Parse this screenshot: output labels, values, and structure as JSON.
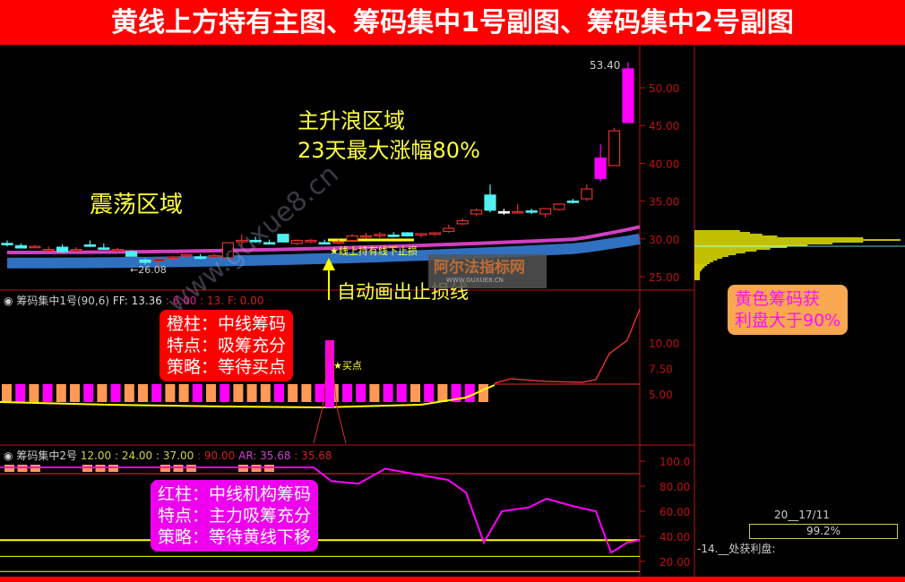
{
  "banner": {
    "title": "黄线上方持有主图、筹码集中1号副图、筹码集中2号副图"
  },
  "colors": {
    "banner": "#ff0000",
    "up": "#e03030",
    "down": "#50f0f0",
    "magenta": "#ff00ff",
    "yellow": "#ffff00",
    "orange": "#ff9955",
    "axis": "#c01010",
    "ma_pink": "#d040c0",
    "ma_blue": "#3070c0"
  },
  "main": {
    "high_label": "53.40",
    "low_label": "←26.08",
    "zone1": "震荡区域",
    "zone2_line1": "主升浪区域",
    "zone2_line2": "23天最大涨幅80%",
    "stoploss_note": "★线上持有线下止损",
    "auto_line_note": "自动画出止损线",
    "watermark": "阿尔法指标网",
    "watermark_small": "WWW.GUXUE8.CN",
    "site_watermark": "www.guxue8.cn",
    "axis": [
      "50.00",
      "45.00",
      "40.00",
      "35.00",
      "30.00",
      "25.00"
    ]
  },
  "panel1": {
    "title": "筹码集中1号(90,6)",
    "ff": "FF: 13.36",
    "v2": ": 6.00",
    "v3": ": 13.",
    "v4": "F: 0.00",
    "buy_point": "★买点",
    "axis": [
      "10.00",
      "7.50",
      "5.00"
    ],
    "note": [
      "橙柱：中线筹码",
      "特点：吸筹充分",
      "策略：等待买点"
    ]
  },
  "panel2": {
    "title": "筹码集中2号",
    "v1": "12.00",
    "v2": ": 24.00",
    "v3": ": 37.00",
    "v4": ": 90.00",
    "ar": "AR: 35.68",
    "v5": ": 35.68",
    "axis": [
      "100.0",
      "80.00",
      "60.00",
      "40.00",
      "20.00"
    ],
    "note": [
      "红柱：中线机构筹码",
      "特点：主力吸筹充分",
      "策略：等待黄线下移"
    ]
  },
  "side": {
    "note": [
      "黄色筹码获",
      "利盘大于90%"
    ],
    "date": "20__17/11",
    "profit_pct": 99.2,
    "profit_text": "99.2%",
    "profit_label": "-14.__处获利盘:"
  },
  "chart_data": {
    "type": "candlestick",
    "ylim": [
      24,
      54
    ],
    "candles": [
      [
        29.4,
        29.8,
        29.0,
        29.3,
        "d"
      ],
      [
        29.1,
        29.4,
        28.8,
        28.8,
        "d"
      ],
      [
        29.0,
        29.2,
        28.8,
        28.9,
        "u"
      ],
      [
        28.6,
        29.0,
        28.3,
        28.6,
        "u"
      ],
      [
        28.9,
        29.3,
        28.1,
        28.3,
        "d"
      ],
      [
        28.6,
        28.9,
        28.3,
        28.6,
        "u"
      ],
      [
        29.2,
        29.8,
        28.9,
        29.2,
        "d"
      ],
      [
        28.8,
        29.4,
        28.6,
        28.7,
        "d"
      ],
      [
        28.6,
        28.8,
        28.2,
        28.6,
        "u"
      ],
      [
        28.3,
        28.5,
        27.8,
        27.7,
        "d"
      ],
      [
        27.2,
        27.4,
        26.6,
        26.9,
        "d"
      ],
      [
        27.1,
        27.5,
        26.1,
        27.3,
        "u"
      ],
      [
        27.5,
        27.8,
        27.2,
        27.6,
        "u"
      ],
      [
        27.8,
        28.0,
        27.5,
        27.9,
        "u"
      ],
      [
        27.6,
        28.0,
        27.3,
        27.6,
        "d"
      ],
      [
        27.8,
        28.1,
        27.5,
        27.8,
        "u"
      ],
      [
        27.5,
        29.5,
        27.5,
        29.5,
        "u"
      ],
      [
        29.6,
        30.6,
        29.0,
        29.8,
        "u"
      ],
      [
        29.8,
        30.3,
        29.5,
        29.8,
        "d"
      ],
      [
        29.5,
        29.9,
        29.3,
        29.5,
        "d"
      ],
      [
        30.6,
        30.6,
        29.6,
        29.6,
        "d"
      ],
      [
        29.4,
        29.9,
        29.2,
        29.8,
        "u"
      ],
      [
        29.6,
        30.0,
        29.4,
        29.8,
        "u"
      ],
      [
        29.5,
        29.9,
        29.3,
        29.5,
        "d"
      ],
      [
        29.5,
        29.9,
        29.3,
        29.6,
        "u"
      ],
      [
        29.8,
        30.6,
        29.6,
        30.4,
        "u"
      ],
      [
        30.4,
        30.8,
        30.0,
        30.4,
        "u"
      ],
      [
        30.4,
        30.9,
        30.1,
        30.6,
        "u"
      ],
      [
        30.5,
        30.9,
        30.2,
        30.5,
        "d"
      ],
      [
        30.8,
        30.9,
        30.3,
        30.4,
        "d"
      ],
      [
        30.5,
        30.8,
        30.2,
        30.7,
        "u"
      ],
      [
        30.6,
        30.9,
        30.4,
        30.8,
        "u"
      ],
      [
        31.0,
        31.9,
        30.8,
        31.4,
        "u"
      ],
      [
        32.0,
        32.7,
        31.8,
        32.4,
        "u"
      ],
      [
        33.3,
        34.0,
        33.0,
        33.8,
        "u"
      ],
      [
        33.8,
        37.2,
        33.5,
        35.8,
        "d"
      ],
      [
        33.6,
        34.0,
        33.2,
        33.6,
        "w"
      ],
      [
        33.6,
        34.6,
        33.6,
        33.6,
        "u"
      ],
      [
        33.7,
        34.0,
        33.3,
        33.6,
        "d"
      ],
      [
        33.3,
        34.0,
        32.8,
        34.0,
        "u"
      ],
      [
        33.9,
        34.7,
        33.8,
        34.6,
        "u"
      ],
      [
        35.0,
        35.3,
        34.7,
        35.0,
        "d"
      ],
      [
        35.3,
        37.2,
        35.0,
        36.6,
        "u"
      ],
      [
        40.7,
        42.5,
        37.6,
        38.0,
        "m"
      ],
      [
        39.7,
        44.7,
        39.7,
        44.3,
        "u"
      ],
      [
        45.4,
        53.4,
        45.4,
        52.5,
        "m"
      ]
    ],
    "panel1_bars": [
      "o",
      "m",
      "o",
      "m",
      "o",
      "o",
      "m",
      "o",
      "m",
      "o",
      "o",
      "m",
      "o",
      "o",
      "m",
      "o",
      "m",
      "o",
      "o",
      "o",
      "m",
      "o",
      "o",
      "m",
      "o",
      "m",
      "m",
      "o",
      "m",
      "m",
      "o",
      "m",
      "o",
      "m",
      "m",
      "o"
    ],
    "panel2_line": [
      [
        0,
        95
      ],
      [
        350,
        95
      ],
      [
        370,
        84
      ],
      [
        400,
        82
      ],
      [
        430,
        94
      ],
      [
        460,
        90
      ],
      [
        500,
        85
      ],
      [
        520,
        75
      ],
      [
        540,
        35
      ],
      [
        560,
        60
      ],
      [
        590,
        63
      ],
      [
        610,
        70
      ],
      [
        640,
        64
      ],
      [
        665,
        60
      ],
      [
        682,
        27
      ],
      [
        700,
        35
      ],
      [
        714,
        37
      ]
    ],
    "panel2_levels": {
      "yellow": 37,
      "lines": [
        24,
        12
      ],
      "red": 90
    }
  }
}
